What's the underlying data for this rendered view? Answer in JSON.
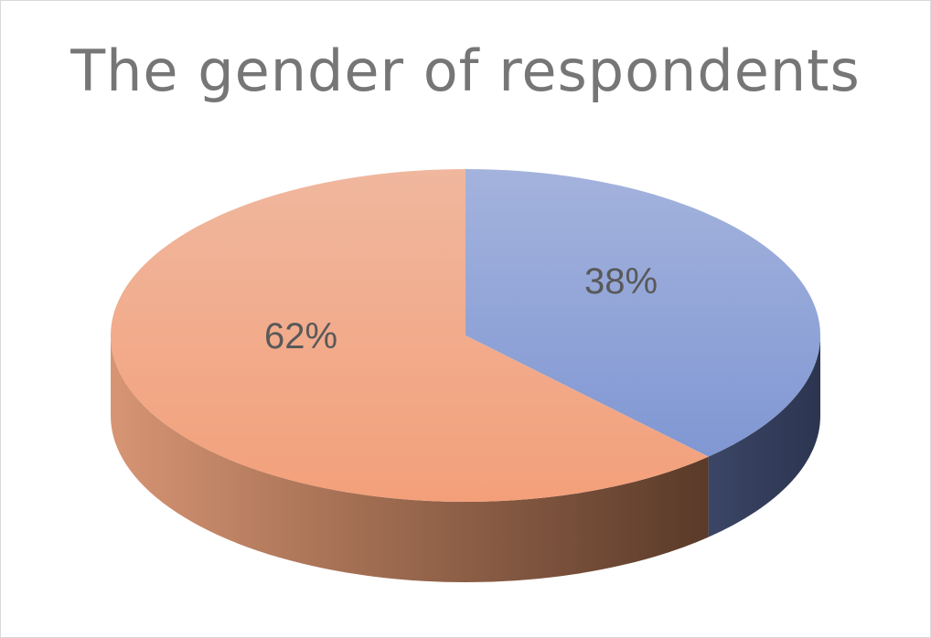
{
  "chart_data": {
    "type": "pie",
    "title": "The gender of respondents",
    "categories": [
      "",
      ""
    ],
    "values": [
      38,
      62
    ],
    "data_labels": [
      "38%",
      "62%"
    ],
    "colors": [
      "#8fa3d8",
      "#f2a482"
    ],
    "legend": "none",
    "style": "3d"
  }
}
